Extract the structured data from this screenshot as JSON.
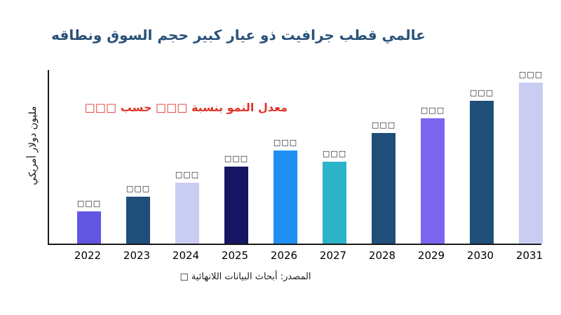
{
  "title": "عالمي قطب جرافيت ذو عيار كبير حجم السوق ونطاقه",
  "annotation": "معدل النمو بنسبة □□□ حسب □□□",
  "source": "المصدر: أبحاث البيانات اللانهائية □",
  "colors": {
    "title": "#2a527a",
    "annotation": "#e0352b",
    "axis": "#1a1a1a",
    "background": "#ffffff"
  },
  "chart_data": {
    "type": "bar",
    "title": "عالمي قطب جرافيت ذو عيار كبير حجم السوق ونطاقه",
    "xlabel": "",
    "ylabel": "مليون دولار أمريكي",
    "categories": [
      "2022",
      "2023",
      "2024",
      "2025",
      "2026",
      "2027",
      "2028",
      "2029",
      "2030",
      "2031"
    ],
    "values": [
      20,
      29,
      38,
      48,
      58,
      51,
      69,
      78,
      89,
      100
    ],
    "bar_labels": [
      "□□□",
      "□□□",
      "□□□",
      "□□□",
      "□□□",
      "□□□",
      "□□□",
      "□□□",
      "□□□",
      "□□□"
    ],
    "colors": [
      "#6156e2",
      "#1f4e79",
      "#c9cdf1",
      "#151561",
      "#2090f0",
      "#2bb3c8",
      "#1f4e79",
      "#7c66ef",
      "#1f4e79",
      "#c9cdf1"
    ],
    "ylim": [
      0,
      108
    ],
    "grid": false,
    "legend": false,
    "annotation_text": "معدل النمو بنسبة □□□ حسب □□□",
    "value_labels_unreadable": true,
    "values_are_estimates_relative_units": true
  }
}
